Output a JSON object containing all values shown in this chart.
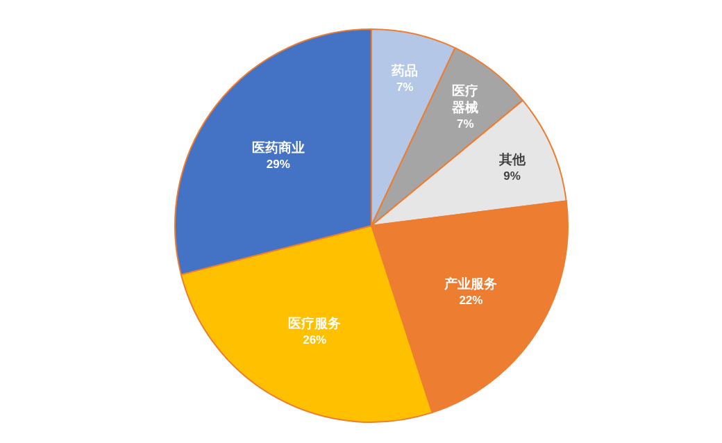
{
  "chart_data": {
    "type": "pie",
    "categories": [
      "药品",
      "医疗器械",
      "其他",
      "产业服务",
      "医疗服务",
      "医药商业"
    ],
    "values": [
      7,
      7,
      9,
      22,
      26,
      29
    ],
    "colors": [
      "#b4c7e7",
      "#a5a5a5",
      "#e7e6e6",
      "#ed7d31",
      "#ffc000",
      "#4472c4"
    ],
    "value_labels": [
      "7%",
      "7%",
      "9%",
      "22%",
      "26%",
      "29%"
    ]
  }
}
